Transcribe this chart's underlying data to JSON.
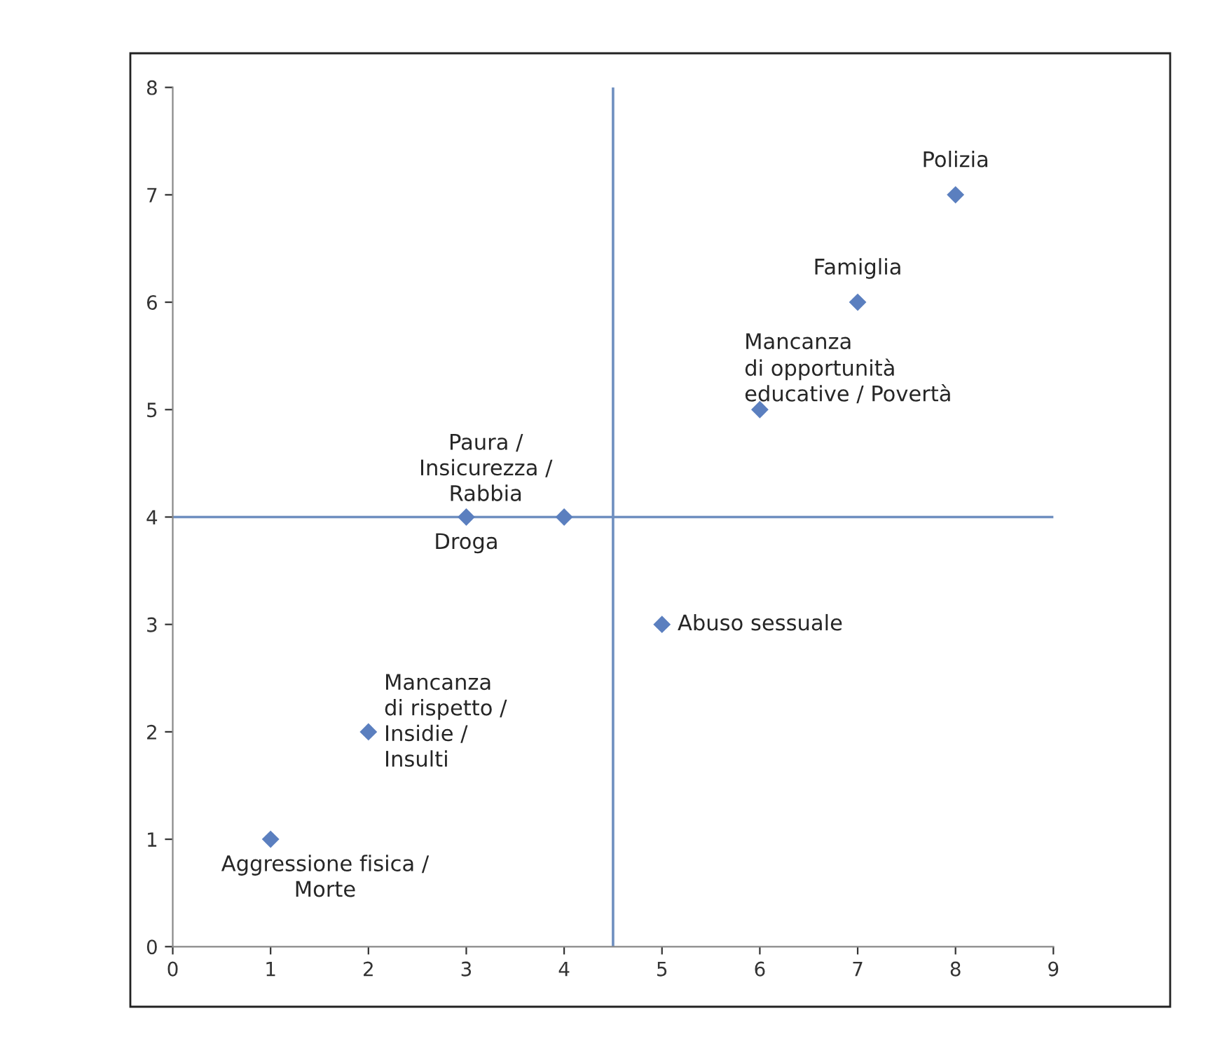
{
  "chart_data": {
    "type": "scatter",
    "x": [
      1,
      2,
      3,
      4,
      5,
      6,
      7,
      8
    ],
    "series": [
      {
        "color": "#5b7fbf",
        "values": [
          1,
          2,
          4,
          4,
          3,
          5,
          6,
          7
        ]
      }
    ],
    "marker": "diamond",
    "xlim": [
      0,
      9
    ],
    "ylim": [
      0,
      8
    ],
    "xticks": [
      0,
      1,
      2,
      3,
      4,
      5,
      6,
      7,
      8,
      9
    ],
    "yticks": [
      0,
      1,
      2,
      3,
      4,
      5,
      6,
      7,
      8
    ],
    "grid": false,
    "legend": false,
    "ref_lines": [
      {
        "axis": "x",
        "value": 4.5,
        "color": "#6f8fc0"
      },
      {
        "axis": "y",
        "value": 4,
        "color": "#6f8fc0"
      }
    ],
    "annotations": [
      {
        "text": "Aggressione fisica /\nMorte",
        "x": 1,
        "y": 1
      },
      {
        "text": "Mancanza\ndi rispetto /\nInsidie /\nInsulti",
        "x": 2,
        "y": 2
      },
      {
        "text": "Droga",
        "x": 3,
        "y": 4
      },
      {
        "text": "Paura /\nInsicurezza /\nRabbia",
        "x": 4,
        "y": 4
      },
      {
        "text": "Abuso sessuale",
        "x": 5,
        "y": 3
      },
      {
        "text": "Mancanza\ndi opportunità\neducative / Povertà",
        "x": 6,
        "y": 5
      },
      {
        "text": "Famiglia",
        "x": 7,
        "y": 6
      },
      {
        "text": "Polizia",
        "x": 8,
        "y": 7
      }
    ]
  }
}
